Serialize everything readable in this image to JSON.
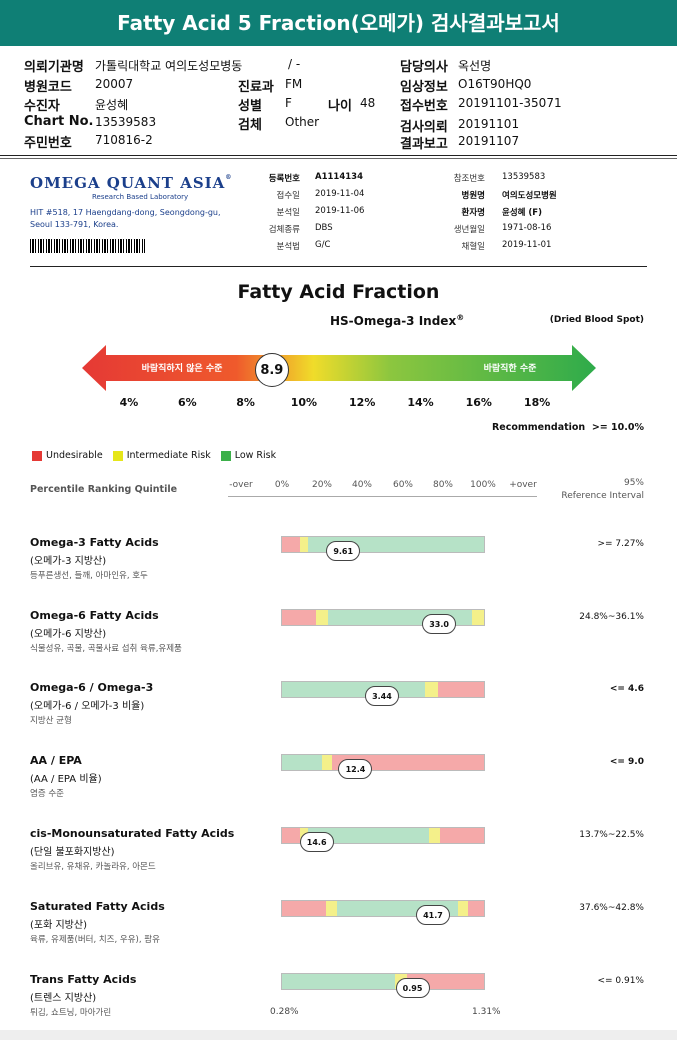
{
  "title": "Fatty Acid 5 Fraction(오메가) 검사결과보고서",
  "patient_info": {
    "col1": [
      {
        "label": "의뢰기관명",
        "value": "가톨릭대학교 여의도성모병동"
      },
      {
        "label": "병원코드",
        "value": "20007"
      },
      {
        "label": "수진자",
        "value": "윤성혜"
      },
      {
        "label": "Chart No.",
        "value": "13539583"
      },
      {
        "label": "주민번호",
        "value": "710816-2"
      }
    ],
    "col2": [
      {
        "label": "",
        "value": "/ -"
      },
      {
        "label": "진료과",
        "value": "FM"
      },
      {
        "label": "성별",
        "value": "F"
      },
      {
        "label": "검체",
        "value": "Other"
      }
    ],
    "age": {
      "label": "나이",
      "value": "48"
    },
    "col3": [
      {
        "label": "담당의사",
        "value": "옥선명"
      },
      {
        "label": "임상정보",
        "value": "O16T90HQ0"
      },
      {
        "label": "접수번호",
        "value": "20191101-35071"
      },
      {
        "label": "검사의뢰",
        "value": "20191101"
      },
      {
        "label": "결과보고",
        "value": "20191107"
      }
    ]
  },
  "lab": {
    "name": "Omega Quant Asia",
    "tagline": "Research Based Laboratory",
    "address_line1": "HIT #518, 17 Haengdang-dong, Seongdong-gu,",
    "address_line2": "Seoul 133-791, Korea."
  },
  "specimen": {
    "left": [
      {
        "label": "등록번호",
        "value": "A1114134",
        "bold": true
      },
      {
        "label": "접수일",
        "value": "2019-11-04"
      },
      {
        "label": "분석일",
        "value": "2019-11-06"
      },
      {
        "label": "검체종류",
        "value": "DBS"
      },
      {
        "label": "분석법",
        "value": "G/C"
      }
    ],
    "right": [
      {
        "label": "참조번호",
        "value": "13539583"
      },
      {
        "label": "병원명",
        "value": "여의도성모병원",
        "bold": true
      },
      {
        "label": "환자명",
        "value": "윤성혜 (F)",
        "bold": true
      },
      {
        "label": "생년월일",
        "value": "1971-08-16"
      },
      {
        "label": "채혈일",
        "value": "2019-11-01"
      }
    ]
  },
  "fraction_title": "Fatty Acid Fraction",
  "index": {
    "title": "HS-Omega-3 Index",
    "sup": "®",
    "sample_type": "(Dried Blood Spot)",
    "value": "8.9",
    "value_num": 8.9,
    "left_text": "바람직하지 않은 수준",
    "right_text": "바람직한 수준",
    "ticks": [
      "4%",
      "6%",
      "8%",
      "10%",
      "12%",
      "14%",
      "16%",
      "18%"
    ],
    "recommendation_label": "Recommendation",
    "recommendation_value": ">= 10.0%"
  },
  "legend": [
    {
      "label": "Undesirable",
      "color": "#e53935"
    },
    {
      "label": "Intermediate Risk",
      "color": "#e6e61a"
    },
    {
      "label": "Low Risk",
      "color": "#3cb04a"
    }
  ],
  "percentile": {
    "header": "Percentile Ranking Quintile",
    "ticks": [
      "-over",
      "0%",
      "20%",
      "40%",
      "60%",
      "80%",
      "100%",
      "+over"
    ],
    "ref_header_line1": "95%",
    "ref_header_line2": "Reference Interval"
  },
  "rows": [
    {
      "name": "Omega-3 Fatty Acids",
      "sub": "(오메가-3 지방산)",
      "desc": "등푸른생선, 들깨, 아마인유, 호두",
      "value": "9.61",
      "ref": ">= 7.27%",
      "ref_bold": false,
      "segments": [
        [
          "#f5a9a9",
          0.09
        ],
        [
          "#f4f08a",
          0.04
        ],
        [
          "#b6e2c7",
          0.87
        ]
      ],
      "pos": 0.3
    },
    {
      "name": "Omega-6 Fatty Acids",
      "sub": "(오메가-6 지방산)",
      "desc": "식물성유, 곡물, 곡물사료 섭취 육류,유제품",
      "value": "33.0",
      "ref": "24.8%~36.1%",
      "ref_bold": false,
      "segments": [
        [
          "#f5a9a9",
          0.17
        ],
        [
          "#f4f08a",
          0.06
        ],
        [
          "#b6e2c7",
          0.71
        ],
        [
          "#f4f08a",
          0.06
        ]
      ],
      "pos": 0.77
    },
    {
      "name": "Omega-6 / Omega-3",
      "sub": "(오메가-6 / 오메가-3 비율)",
      "desc": "지방산 균형",
      "value": "3.44",
      "ref": "<= 4.6",
      "ref_bold": true,
      "segments": [
        [
          "#b6e2c7",
          0.71
        ],
        [
          "#f4f08a",
          0.06
        ],
        [
          "#f5a9a9",
          0.23
        ]
      ],
      "pos": 0.49
    },
    {
      "name": "AA / EPA",
      "sub": "(AA / EPA 비율)",
      "desc": "염증 수준",
      "value": "12.4",
      "ref": "<= 9.0",
      "ref_bold": true,
      "segments": [
        [
          "#b6e2c7",
          0.2
        ],
        [
          "#f4f08a",
          0.05
        ],
        [
          "#f5a9a9",
          0.75
        ]
      ],
      "pos": 0.36
    },
    {
      "name": "cis-Monounsaturated Fatty Acids",
      "sub": "(단일 불포화지방산)",
      "desc": "올리브유, 유채유, 카놀라유, 아몬드",
      "value": "14.6",
      "ref": "13.7%~22.5%",
      "ref_bold": false,
      "segments": [
        [
          "#f5a9a9",
          0.09
        ],
        [
          "#f4f08a",
          0.04
        ],
        [
          "#b6e2c7",
          0.6
        ],
        [
          "#f4f08a",
          0.05
        ],
        [
          "#f5a9a9",
          0.22
        ]
      ],
      "pos": 0.17
    },
    {
      "name": "Saturated Fatty Acids",
      "sub": "(포화 지방산)",
      "desc": "육류, 유제품(버터, 치즈, 우유), 팜유",
      "value": "41.7",
      "ref": "37.6%~42.8%",
      "ref_bold": false,
      "segments": [
        [
          "#f5a9a9",
          0.22
        ],
        [
          "#f4f08a",
          0.05
        ],
        [
          "#b6e2c7",
          0.6
        ],
        [
          "#f4f08a",
          0.05
        ],
        [
          "#f5a9a9",
          0.08
        ]
      ],
      "pos": 0.74
    },
    {
      "name": "Trans Fatty Acids",
      "sub": "(트렌스 지방산)",
      "desc": "튀김, 쇼트닝, 마아가린",
      "value": "0.95",
      "ref": "<= 0.91%",
      "ref_bold": false,
      "segments": [
        [
          "#b6e2c7",
          0.56
        ],
        [
          "#f4f08a",
          0.06
        ],
        [
          "#f5a9a9",
          0.38
        ]
      ],
      "pos": 0.64
    }
  ],
  "bottom_min": "0.28%",
  "bottom_max": "1.31%"
}
